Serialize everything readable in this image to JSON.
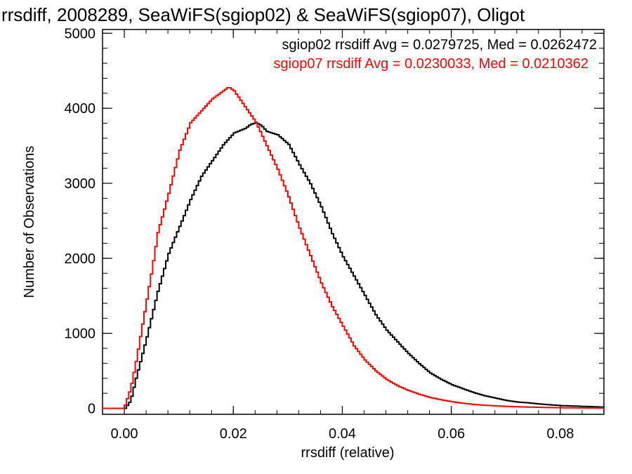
{
  "chart_data": {
    "type": "histogram-step",
    "title": "rrsdiff, 2008289, SeaWiFS(sgiop02) & SeaWiFS(sgiop07), Oligot",
    "xlabel": "rrsdiff (relative)",
    "ylabel": "Number of Observations",
    "xlim": [
      -0.004,
      0.088
    ],
    "ylim": [
      -80,
      5050
    ],
    "xticks": [
      0.0,
      0.02,
      0.04,
      0.06,
      0.08
    ],
    "xtick_labels": [
      "0.00",
      "0.02",
      "0.04",
      "0.06",
      "0.08"
    ],
    "yticks": [
      0,
      1000,
      2000,
      3000,
      4000,
      5000
    ],
    "ytick_labels": [
      "0",
      "1000",
      "2000",
      "3000",
      "4000",
      "5000"
    ],
    "grid": false,
    "annotations": [
      {
        "text": "sgiop02 rrsdiff Avg = 0.0279725, Med = 0.0262472",
        "color": "#000000"
      },
      {
        "text": "sgiop07 rrsdiff Avg = 0.0230033, Med = 0.0210362",
        "color": "#ff0000"
      }
    ],
    "series": [
      {
        "color": "#000000",
        "x": [
          -0.004,
          0.0,
          0.001,
          0.002,
          0.004,
          0.006,
          0.008,
          0.01,
          0.012,
          0.014,
          0.016,
          0.018,
          0.02,
          0.022,
          0.023,
          0.024,
          0.025,
          0.026,
          0.028,
          0.03,
          0.032,
          0.034,
          0.036,
          0.038,
          0.04,
          0.042,
          0.044,
          0.046,
          0.048,
          0.05,
          0.052,
          0.054,
          0.056,
          0.058,
          0.06,
          0.062,
          0.064,
          0.066,
          0.068,
          0.07,
          0.072,
          0.074,
          0.076,
          0.078,
          0.08,
          0.082,
          0.084,
          0.086,
          0.088
        ],
        "y": [
          0,
          0,
          100,
          400,
          950,
          1550,
          2050,
          2400,
          2750,
          3050,
          3250,
          3450,
          3600,
          3650,
          3700,
          3720,
          3680,
          3600,
          3550,
          3420,
          3150,
          2900,
          2600,
          2250,
          1950,
          1700,
          1450,
          1200,
          1000,
          850,
          700,
          570,
          450,
          370,
          300,
          250,
          200,
          160,
          130,
          100,
          80,
          70,
          55,
          45,
          35,
          30,
          25,
          20,
          15
        ]
      },
      {
        "color": "#ff0000",
        "x": [
          -0.004,
          -0.0002,
          0.001,
          0.002,
          0.003,
          0.004,
          0.005,
          0.006,
          0.008,
          0.01,
          0.012,
          0.014,
          0.016,
          0.018,
          0.019,
          0.02,
          0.021,
          0.022,
          0.023,
          0.024,
          0.025,
          0.026,
          0.028,
          0.03,
          0.032,
          0.034,
          0.036,
          0.038,
          0.04,
          0.042,
          0.044,
          0.046,
          0.048,
          0.05,
          0.052,
          0.054,
          0.056,
          0.058,
          0.06,
          0.062,
          0.064,
          0.066,
          0.068,
          0.07,
          0.072,
          0.074,
          0.076,
          0.078,
          0.08,
          0.082,
          0.084,
          0.086,
          0.088
        ],
        "y": [
          0,
          0,
          250,
          600,
          1000,
          1400,
          1800,
          2250,
          2750,
          3300,
          3650,
          3800,
          3950,
          4050,
          4100,
          4050,
          3950,
          3850,
          3750,
          3650,
          3500,
          3350,
          3050,
          2700,
          2300,
          1950,
          1600,
          1300,
          1050,
          800,
          620,
          480,
          370,
          290,
          230,
          180,
          140,
          110,
          85,
          65,
          50,
          40,
          32,
          25,
          20,
          16,
          13,
          10,
          8,
          6,
          5,
          4,
          3
        ]
      }
    ]
  }
}
